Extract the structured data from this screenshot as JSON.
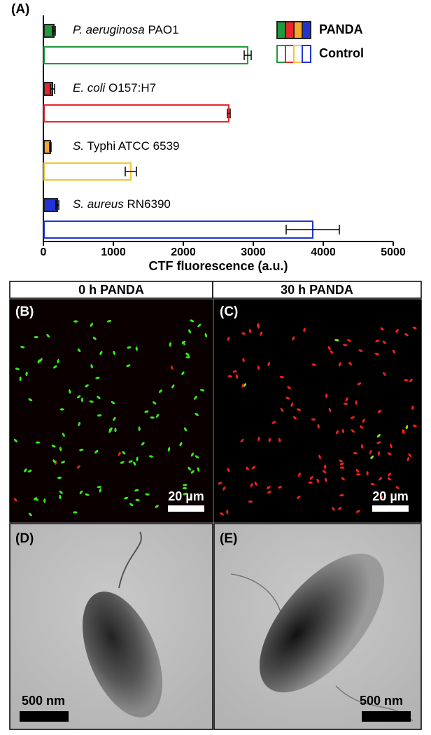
{
  "chart_data": {
    "type": "hbar-grouped",
    "panel_label": "(A)",
    "categories": [
      {
        "species": "P. aeruginosa",
        "strain": "PAO1"
      },
      {
        "species": "E. coli",
        "strain": "O157:H7"
      },
      {
        "species": "S.",
        "strain": "Typhi ATCC 6539"
      },
      {
        "species": "S. aureus",
        "strain": "RN6390"
      }
    ],
    "colors": [
      "#1f9a3c",
      "#e8252b",
      "#f4a62a",
      "#2233d6"
    ],
    "series": [
      {
        "name": "PANDA",
        "style": "filled",
        "values": [
          150,
          130,
          100,
          200
        ],
        "errors": [
          20,
          30,
          10,
          20
        ]
      },
      {
        "name": "Control",
        "style": "outline",
        "colors": [
          "#1f9a3c",
          "#e8252b",
          "#f5c634",
          "#2233d6"
        ],
        "values": [
          2920,
          2650,
          1250,
          3850
        ],
        "errors": [
          50,
          20,
          80,
          380
        ]
      }
    ],
    "xlabel": "CTF fluorescence (a.u.)",
    "xlim": [
      0,
      5000
    ],
    "xticks": [
      0,
      1000,
      2000,
      3000,
      4000,
      5000
    ]
  },
  "panels": {
    "header_left": "0 h PANDA",
    "header_right": "30 h PANDA",
    "b": {
      "label": "(B)",
      "scale": "20 µm"
    },
    "c": {
      "label": "(C)",
      "scale": "20 µm"
    },
    "d": {
      "label": "(D)",
      "scale": "500 nm"
    },
    "e": {
      "label": "(E)",
      "scale": "500 nm"
    }
  }
}
